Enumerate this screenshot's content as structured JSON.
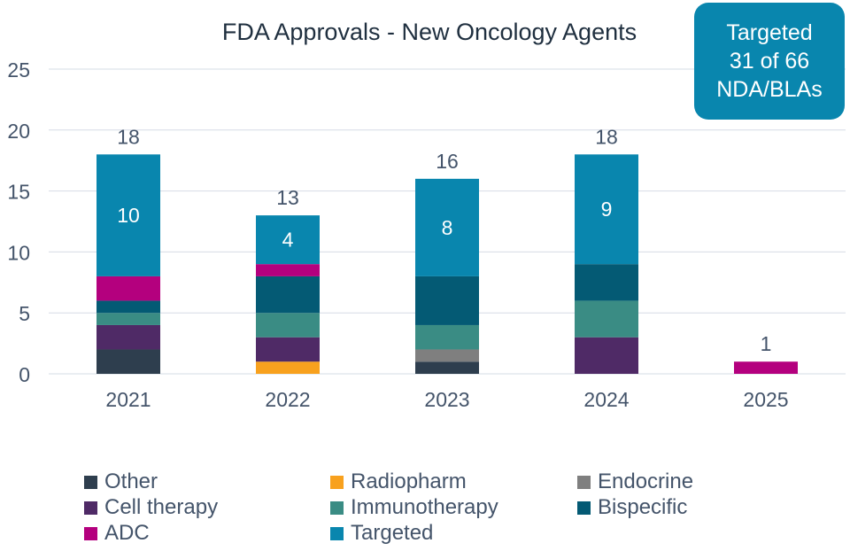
{
  "colors": {
    "Other": "#2E3E4E",
    "Radiopharm": "#F8A11E",
    "Endocrine": "#7F7F7F",
    "Cell therapy": "#4F2A66",
    "Immunotherapy": "#3A8C84",
    "Bispecific": "#045A74",
    "ADC": "#B4007E",
    "Targeted": "#0986AE",
    "axis_text": "#44546A",
    "title_text": "#1F2F3F",
    "grid": "#D6DCE5",
    "callout_bg": "#0986AE"
  },
  "callout": {
    "line1": "Targeted",
    "line2": "31 of 66",
    "line3": "NDA/BLAs"
  },
  "chart_data": {
    "type": "bar",
    "stacked": true,
    "title": "FDA Approvals - New Oncology Agents",
    "xlabel": "",
    "ylabel": "",
    "ylim": [
      0,
      25
    ],
    "yticks": [
      0,
      5,
      10,
      15,
      20,
      25
    ],
    "categories": [
      "2021",
      "2022",
      "2023",
      "2024",
      "2025"
    ],
    "series": [
      {
        "name": "Other",
        "values": [
          2,
          0,
          1,
          0,
          0
        ]
      },
      {
        "name": "Radiopharm",
        "values": [
          0,
          1,
          0,
          0,
          0
        ]
      },
      {
        "name": "Endocrine",
        "values": [
          0,
          0,
          1,
          0,
          0
        ]
      },
      {
        "name": "Cell therapy",
        "values": [
          2,
          2,
          0,
          3,
          0
        ]
      },
      {
        "name": "Immunotherapy",
        "values": [
          1,
          2,
          2,
          3,
          0
        ]
      },
      {
        "name": "Bispecific",
        "values": [
          1,
          3,
          4,
          3,
          0
        ]
      },
      {
        "name": "ADC",
        "values": [
          2,
          1,
          0,
          0,
          1
        ]
      },
      {
        "name": "Targeted",
        "values": [
          10,
          4,
          8,
          9,
          0
        ]
      }
    ],
    "segment_labels": {
      "series": "Targeted",
      "labels": [
        "10",
        "4",
        "8",
        "9",
        null
      ]
    },
    "totals": [
      "18",
      "13",
      "16",
      "18",
      "1"
    ],
    "legend": [
      "Other",
      "Radiopharm",
      "Endocrine",
      "Cell therapy",
      "Immunotherapy",
      "Bispecific",
      "ADC",
      "Targeted"
    ],
    "legend_position": "bottom",
    "grid": true
  }
}
